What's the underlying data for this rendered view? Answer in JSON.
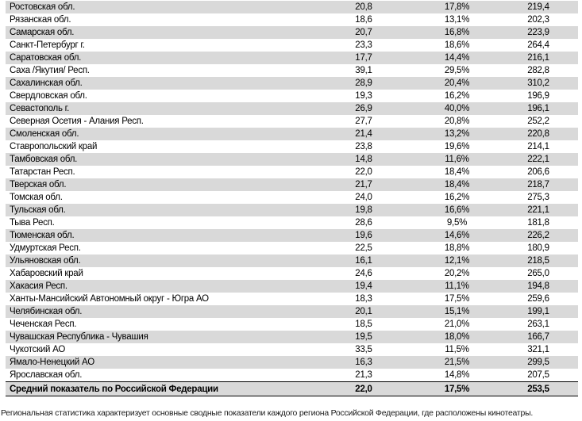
{
  "table": {
    "rows": [
      {
        "region": "Ростовская обл.",
        "values": [
          "20,8",
          "17,8%",
          "219,4"
        ]
      },
      {
        "region": "Рязанская обл.",
        "values": [
          "18,6",
          "13,1%",
          "202,3"
        ]
      },
      {
        "region": "Самарская обл.",
        "values": [
          "20,7",
          "16,8%",
          "223,9"
        ]
      },
      {
        "region": "Санкт-Петербург г.",
        "values": [
          "23,3",
          "18,6%",
          "264,4"
        ]
      },
      {
        "region": "Саратовская обл.",
        "values": [
          "17,7",
          "14,4%",
          "216,1"
        ]
      },
      {
        "region": "Саха /Якутия/ Респ.",
        "values": [
          "39,1",
          "29,5%",
          "282,8"
        ]
      },
      {
        "region": "Сахалинская обл.",
        "values": [
          "28,9",
          "20,4%",
          "310,2"
        ]
      },
      {
        "region": "Свердловская обл.",
        "values": [
          "19,3",
          "16,2%",
          "196,9"
        ]
      },
      {
        "region": "Севастополь г.",
        "values": [
          "26,9",
          "40,0%",
          "196,1"
        ]
      },
      {
        "region": "Северная Осетия - Алания Респ.",
        "values": [
          "27,7",
          "20,8%",
          "252,2"
        ]
      },
      {
        "region": "Смоленская обл.",
        "values": [
          "21,4",
          "13,2%",
          "220,8"
        ]
      },
      {
        "region": "Ставропольский край",
        "values": [
          "23,8",
          "19,6%",
          "214,1"
        ]
      },
      {
        "region": "Тамбовская обл.",
        "values": [
          "14,8",
          "11,6%",
          "222,1"
        ]
      },
      {
        "region": "Татарстан Респ.",
        "values": [
          "22,0",
          "18,4%",
          "206,6"
        ]
      },
      {
        "region": "Тверская обл.",
        "values": [
          "21,7",
          "18,4%",
          "218,7"
        ]
      },
      {
        "region": "Томская обл.",
        "values": [
          "24,0",
          "16,2%",
          "275,3"
        ]
      },
      {
        "region": "Тульская обл.",
        "values": [
          "19,8",
          "16,6%",
          "221,1"
        ]
      },
      {
        "region": "Тыва Респ.",
        "values": [
          "28,6",
          "9,5%",
          "181,8"
        ]
      },
      {
        "region": "Тюменская обл.",
        "values": [
          "19,6",
          "14,6%",
          "226,2"
        ]
      },
      {
        "region": "Удмуртская Респ.",
        "values": [
          "22,5",
          "18,8%",
          "180,9"
        ]
      },
      {
        "region": "Ульяновская обл.",
        "values": [
          "16,1",
          "12,1%",
          "218,5"
        ]
      },
      {
        "region": "Хабаровский край",
        "values": [
          "24,6",
          "20,2%",
          "265,0"
        ]
      },
      {
        "region": "Хакасия Респ.",
        "values": [
          "19,4",
          "11,1%",
          "194,8"
        ]
      },
      {
        "region": "Ханты-Мансийский Автономный округ - Югра АО",
        "values": [
          "18,3",
          "17,5%",
          "259,6"
        ]
      },
      {
        "region": "Челябинская обл.",
        "values": [
          "20,1",
          "15,1%",
          "199,1"
        ]
      },
      {
        "region": "Чеченская Респ.",
        "values": [
          "18,5",
          "21,0%",
          "263,1"
        ]
      },
      {
        "region": "Чувашская Республика - Чувашия",
        "values": [
          "19,5",
          "18,0%",
          "166,7"
        ]
      },
      {
        "region": "Чукотский АО",
        "values": [
          "33,5",
          "11,5%",
          "321,1"
        ]
      },
      {
        "region": "Ямало-Ненецкий АО",
        "values": [
          "16,3",
          "21,5%",
          "299,5"
        ]
      },
      {
        "region": "Ярославская обл.",
        "values": [
          "21,3",
          "14,8%",
          "207,5"
        ]
      },
      {
        "region": "Средний показатель по Российской Федерации",
        "values": [
          "22,0",
          "17,5%",
          "253,5"
        ],
        "summary": true
      }
    ]
  },
  "footnote": "Региональная статистика характеризует основные сводные показатели каждого региона Российской Федерации, где расположены кинотеатры.",
  "colors": {
    "row_shading": "#d9d9d9",
    "summary_border": "#000000",
    "text": "#000000"
  }
}
